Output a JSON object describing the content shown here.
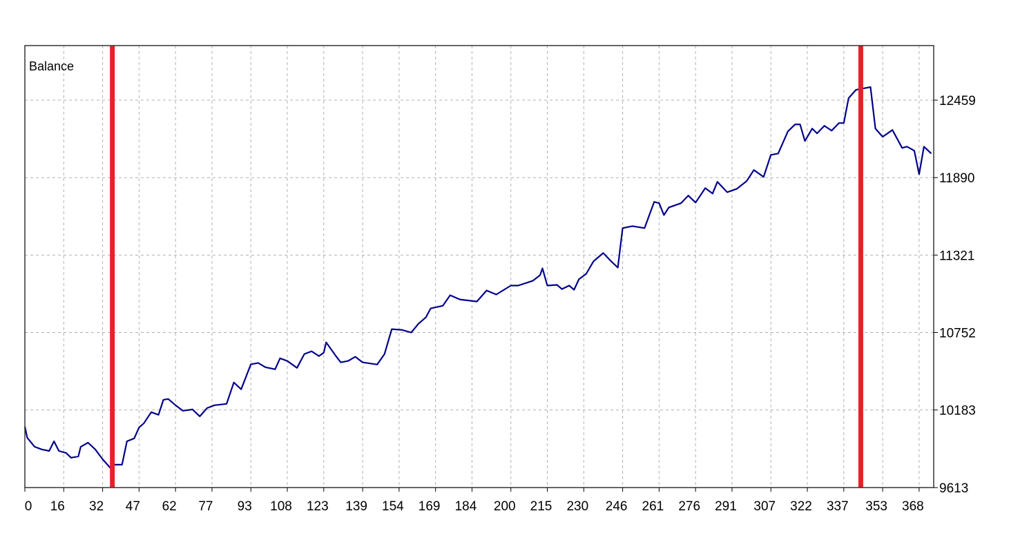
{
  "chart_data": {
    "type": "line",
    "title": "Balance",
    "xlim": [
      0,
      374
    ],
    "xticks": [
      0,
      16,
      32,
      47,
      62,
      77,
      93,
      108,
      123,
      139,
      154,
      169,
      184,
      200,
      215,
      230,
      246,
      261,
      276,
      291,
      307,
      322,
      337,
      353,
      368
    ],
    "ylim": [
      9613,
      12860
    ],
    "yticks": [
      9613,
      10183,
      10752,
      11321,
      11890,
      12459
    ],
    "grid": true,
    "series": [
      {
        "name": "Balance",
        "color": "#00008b",
        "x": [
          0,
          1,
          4,
          7,
          10,
          12,
          14,
          17,
          19,
          22,
          23,
          26,
          29,
          32,
          35,
          37,
          40,
          42,
          45,
          47,
          49,
          52,
          55,
          57,
          59,
          62,
          65,
          69,
          72,
          75,
          78,
          83,
          86,
          89,
          93,
          96,
          99,
          103,
          105,
          108,
          112,
          115,
          118,
          121,
          123,
          124,
          128,
          130,
          133,
          136,
          139,
          145,
          148,
          151,
          155,
          159,
          162,
          165,
          167,
          172,
          175,
          179,
          186,
          190,
          194,
          200,
          203,
          209,
          212,
          213,
          215,
          219,
          221,
          224,
          226,
          228,
          231,
          234,
          238,
          241,
          244,
          246,
          250,
          255,
          259,
          261,
          263,
          265,
          270,
          273,
          276,
          280,
          283,
          285,
          289,
          293,
          297,
          300,
          304,
          307,
          310,
          314,
          317,
          319,
          321,
          324,
          326,
          329,
          332,
          335,
          337,
          339,
          342,
          345,
          348,
          350,
          353,
          357,
          361,
          363,
          366,
          368,
          370,
          373
        ],
        "values": [
          10060,
          9979,
          9913,
          9893,
          9882,
          9953,
          9882,
          9867,
          9832,
          9842,
          9913,
          9943,
          9893,
          9821,
          9760,
          9781,
          9781,
          9953,
          9974,
          10055,
          10086,
          10167,
          10147,
          10258,
          10264,
          10218,
          10177,
          10187,
          10136,
          10197,
          10218,
          10228,
          10385,
          10335,
          10518,
          10528,
          10497,
          10482,
          10563,
          10543,
          10492,
          10594,
          10614,
          10579,
          10604,
          10680,
          10579,
          10533,
          10543,
          10574,
          10533,
          10517,
          10594,
          10777,
          10772,
          10752,
          10817,
          10863,
          10929,
          10949,
          11026,
          10995,
          10980,
          11061,
          11031,
          11097,
          11097,
          11132,
          11173,
          11224,
          11097,
          11102,
          11071,
          11097,
          11066,
          11143,
          11183,
          11275,
          11336,
          11280,
          11229,
          11519,
          11534,
          11519,
          11712,
          11702,
          11615,
          11671,
          11702,
          11758,
          11707,
          11813,
          11773,
          11859,
          11783,
          11808,
          11864,
          11946,
          11895,
          12057,
          12067,
          12230,
          12281,
          12281,
          12159,
          12250,
          12215,
          12271,
          12235,
          12291,
          12291,
          12474,
          12535,
          12545,
          12555,
          12250,
          12190,
          12240,
          12108,
          12118,
          12088,
          11915,
          12118,
          12067
        ]
      }
    ],
    "vlines": {
      "color": "#e8202a",
      "x": [
        36,
        344
      ]
    }
  }
}
